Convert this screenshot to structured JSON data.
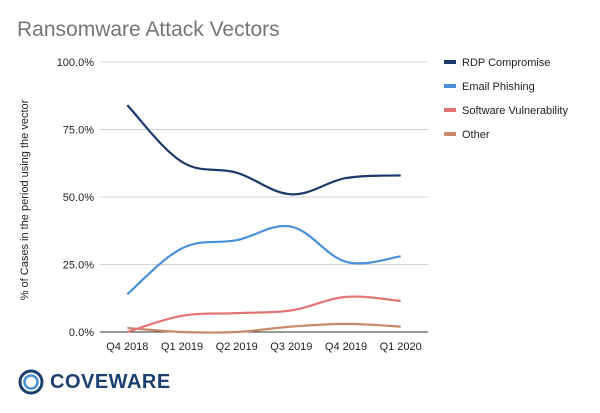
{
  "title": "Ransomware Attack Vectors",
  "logo_text": "COVEWARE",
  "colors": {
    "rdp": "#1b3a6b",
    "email": "#4a90d9",
    "software": "#e57373",
    "other": "#c9896a",
    "grid": "#d0d0d0",
    "axis_text": "#222222"
  },
  "chart_data": {
    "type": "line",
    "title": "Ransomware Attack Vectors",
    "ylabel": "% of Cases in the period using the vector",
    "xlabel": "",
    "categories": [
      "Q4 2018",
      "Q1 2019",
      "Q2 2019",
      "Q3 2019",
      "Q4 2019",
      "Q1 2020"
    ],
    "y_ticks": [
      "0.0%",
      "25.0%",
      "50.0%",
      "75.0%",
      "100.0%"
    ],
    "ylim": [
      0,
      100
    ],
    "grid": true,
    "legend_position": "right",
    "series": [
      {
        "name": "RDP Compromise",
        "color": "#1b3a6b",
        "values": [
          84,
          63,
          59,
          51,
          57,
          58
        ]
      },
      {
        "name": "Email Phishing",
        "color": "#4a90d9",
        "values": [
          14,
          31,
          34,
          39,
          26,
          28
        ]
      },
      {
        "name": "Software Vulnerability",
        "color": "#e57373",
        "values": [
          0,
          6,
          7,
          8,
          13,
          11.5
        ]
      },
      {
        "name": "Other",
        "color": "#c9896a",
        "values": [
          1.5,
          0,
          0,
          2,
          3,
          2
        ]
      }
    ]
  }
}
